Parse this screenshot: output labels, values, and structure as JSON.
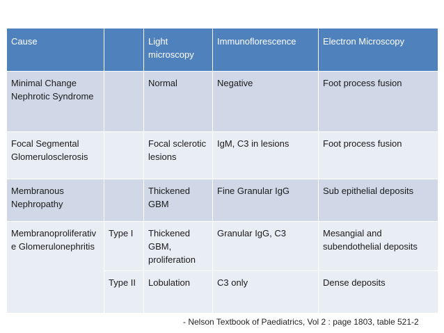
{
  "table": {
    "headers": [
      "Cause",
      "",
      "Light microscopy",
      "Immunoflorescence",
      "Electron Microscopy"
    ],
    "rows": {
      "mcns": {
        "cause": "Minimal Change Nephrotic Syndrome",
        "type": "",
        "light": "Normal",
        "immuno": "Negative",
        "electron": "Foot process fusion"
      },
      "fsgs": {
        "cause": "Focal Segmental Glomerulosclerosis",
        "type": "",
        "light": "Focal sclerotic lesions",
        "immuno": "IgM, C3 in lesions",
        "electron": "Foot process fusion"
      },
      "mn": {
        "cause": "Membranous Nephropathy",
        "type": "",
        "light": "Thickened GBM",
        "immuno": "Fine Granular IgG",
        "electron": "Sub epithelial deposits"
      },
      "mpgn": {
        "cause": "Membranoproliferative Glomerulonephritis",
        "type1": {
          "type": "Type I",
          "light": "Thickened GBM, proliferation",
          "immuno": "Granular IgG, C3",
          "electron": "Mesangial and subendothelial deposits"
        },
        "type2": {
          "type": "Type II",
          "light": "Lobulation",
          "immuno": "C3 only",
          "electron": "Dense deposits"
        }
      }
    }
  },
  "footnote": "- Nelson Textbook of Paediatrics, Vol 2 : page 1803, table 521-2",
  "colors": {
    "header": "#4f81bd",
    "row_dark": "#d0d8e8",
    "row_light": "#e9edf4"
  }
}
